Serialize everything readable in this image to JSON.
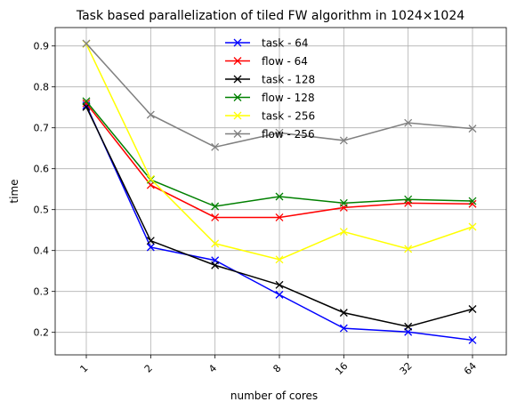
{
  "chart_data": {
    "type": "line",
    "title": "Task based parallelization of tiled FW algorithm in 1024×1024",
    "xlabel": "number of cores",
    "ylabel": "time",
    "categories": [
      "1",
      "2",
      "4",
      "8",
      "16",
      "32",
      "64"
    ],
    "ylim": [
      0.145,
      0.945
    ],
    "yticks": [
      "0.2",
      "0.3",
      "0.4",
      "0.5",
      "0.6",
      "0.7",
      "0.8",
      "0.9"
    ],
    "grid": true,
    "legend_position": "top-center",
    "marker": "x",
    "series": [
      {
        "name": "task - 64",
        "color": "#0000ff",
        "values": [
          0.755,
          0.408,
          0.376,
          0.292,
          0.21,
          0.201,
          0.181
        ]
      },
      {
        "name": "flow - 64",
        "color": "#ff0000",
        "values": [
          0.76,
          0.56,
          0.481,
          0.481,
          0.505,
          0.516,
          0.514
        ]
      },
      {
        "name": "task - 128",
        "color": "#000000",
        "values": [
          0.751,
          0.424,
          0.364,
          0.316,
          0.248,
          0.214,
          0.257
        ]
      },
      {
        "name": "flow - 128",
        "color": "#008000",
        "values": [
          0.765,
          0.573,
          0.508,
          0.532,
          0.516,
          0.525,
          0.521
        ]
      },
      {
        "name": "task - 256",
        "color": "#ffff00",
        "values": [
          0.905,
          0.575,
          0.417,
          0.378,
          0.446,
          0.404,
          0.458
        ]
      },
      {
        "name": "flow - 256",
        "color": "#808080",
        "values": [
          0.906,
          0.732,
          0.653,
          0.688,
          0.669,
          0.712,
          0.698
        ]
      }
    ]
  }
}
